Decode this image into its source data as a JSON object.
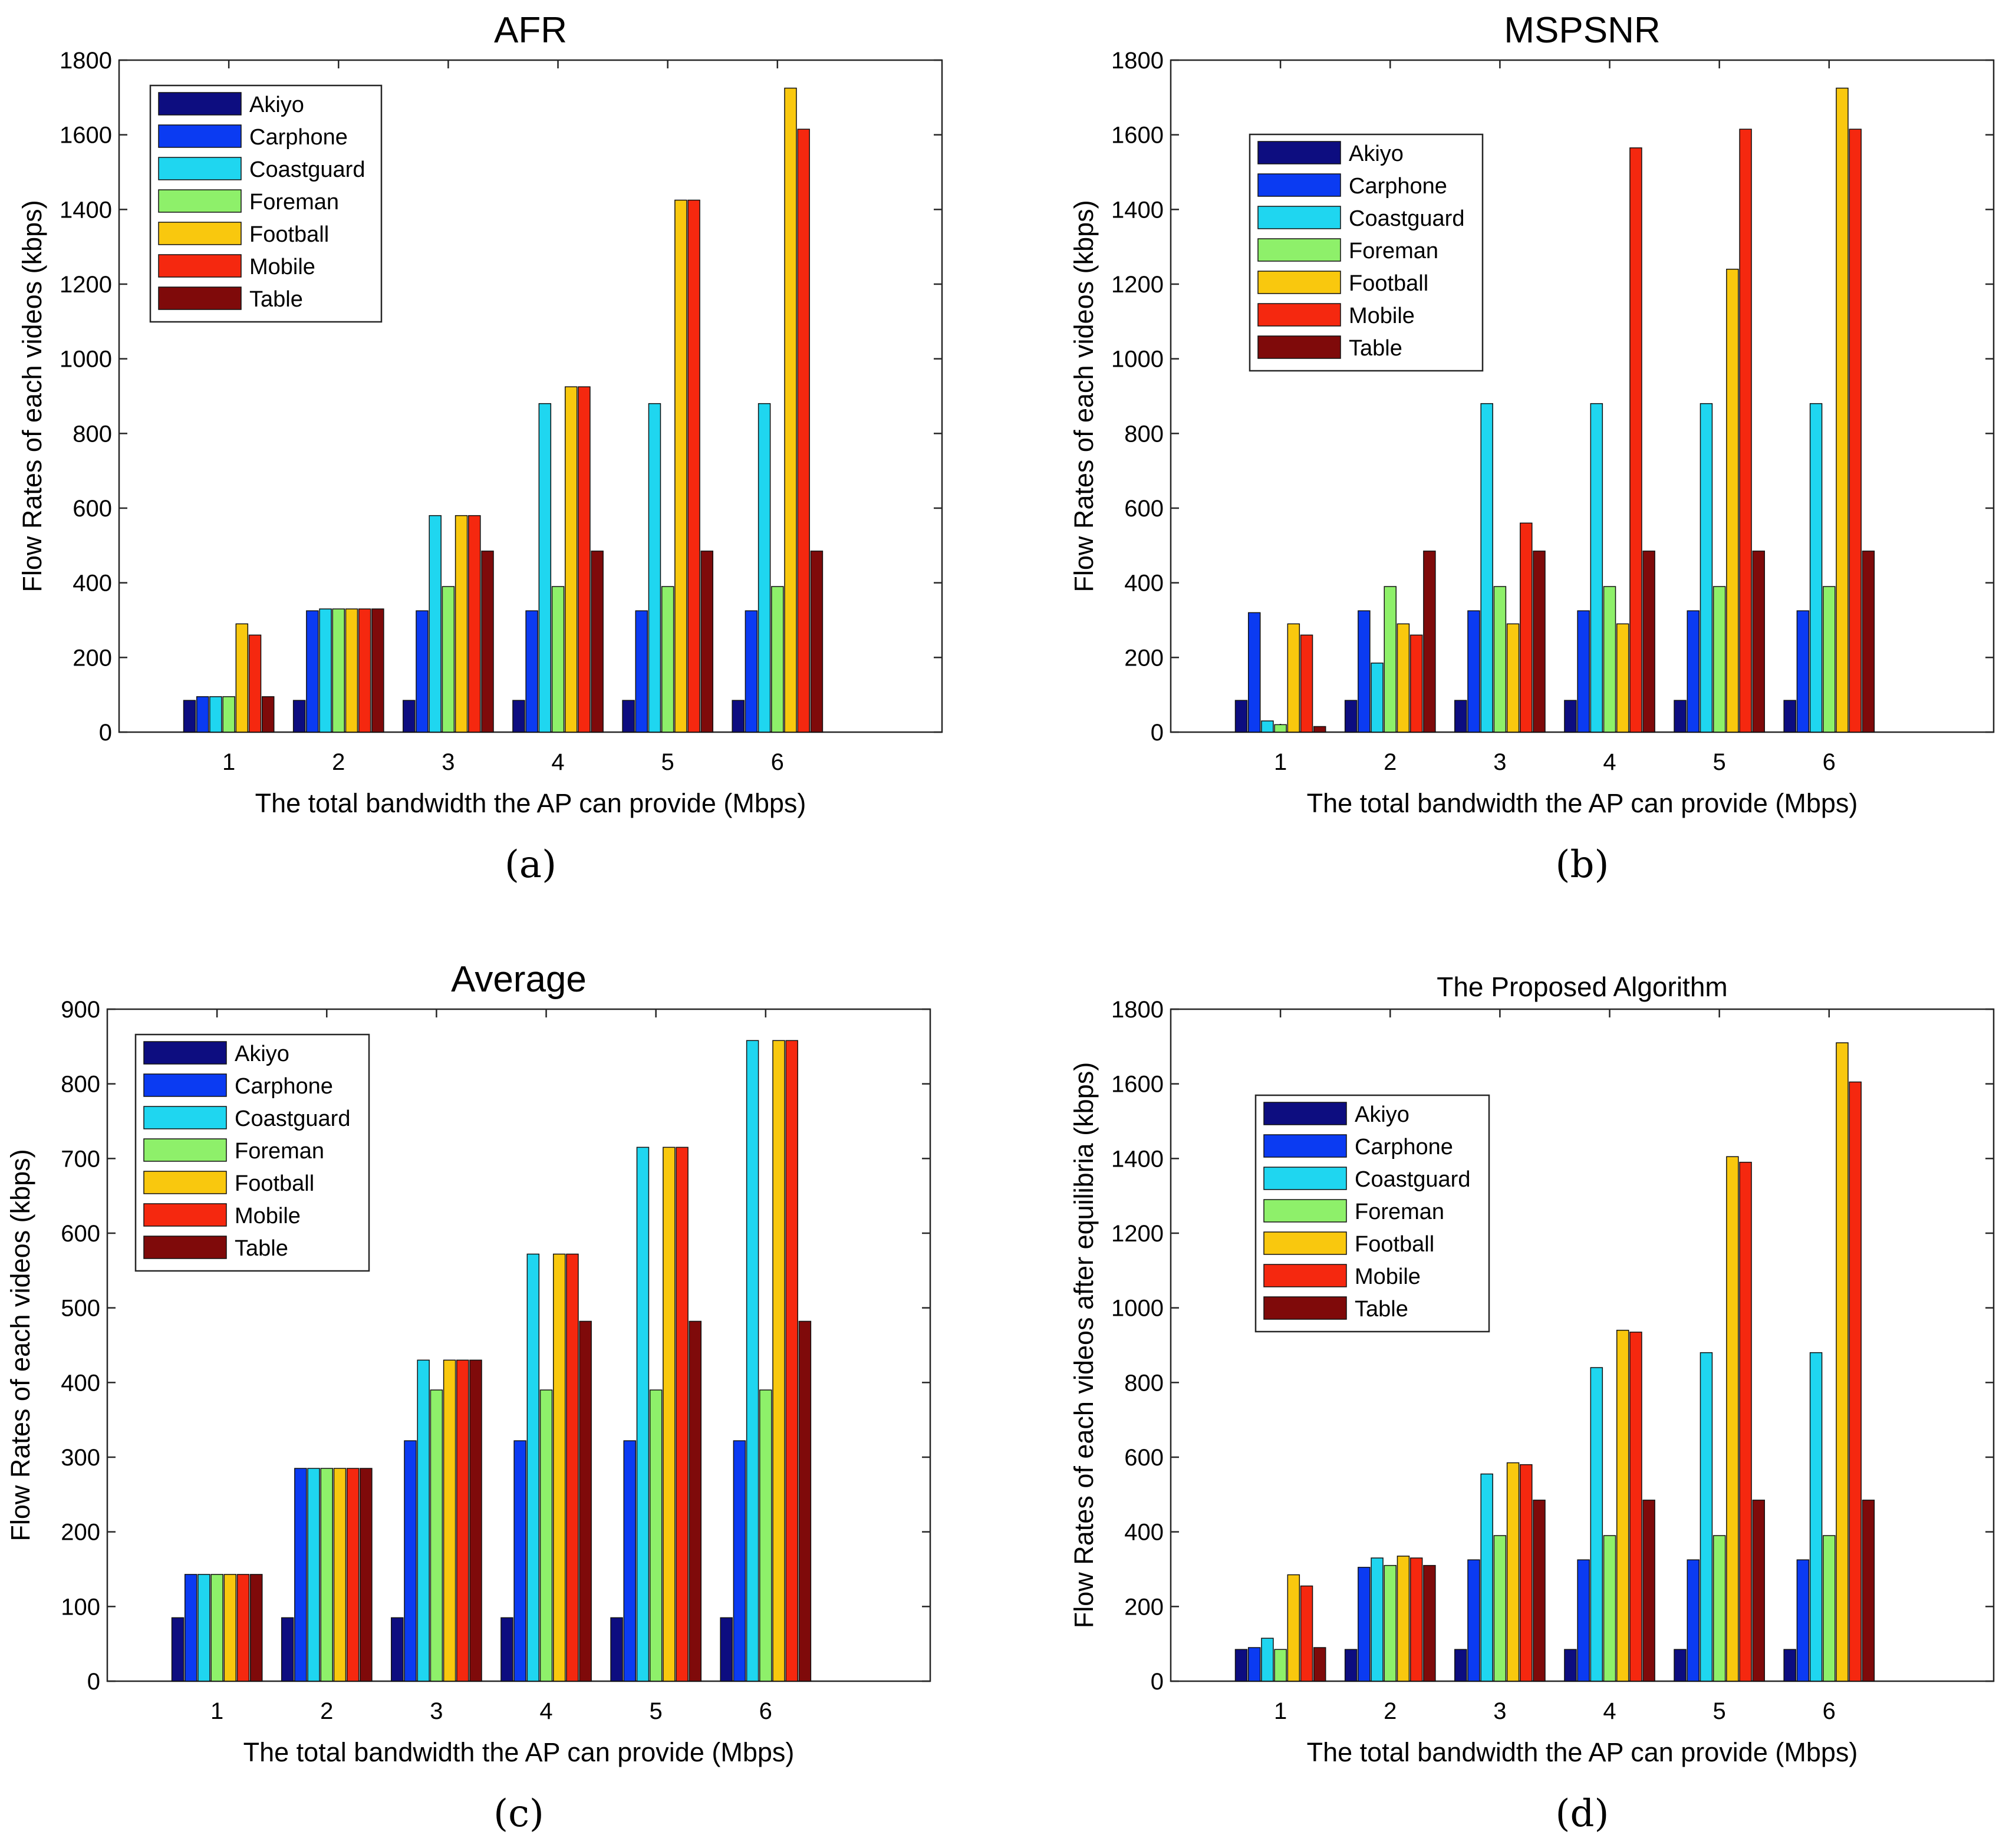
{
  "series_names": [
    "Akiyo",
    "Carphone",
    "Coastguard",
    "Foreman",
    "Football",
    "Mobile",
    "Table"
  ],
  "series_colors": [
    "#0d0d80",
    "#0b3bf2",
    "#1fd6f0",
    "#8ef06a",
    "#f9c80e",
    "#f5280f",
    "#7f0a0a"
  ],
  "chart_data": [
    {
      "type": "bar",
      "title": "AFR",
      "caption": "(a)",
      "xlabel": "The total bandwidth the AP can provide (Mbps)",
      "ylabel": "Flow Rates of each videos (kbps)",
      "categories": [
        "1",
        "2",
        "3",
        "4",
        "5",
        "6"
      ],
      "ylim": [
        0,
        1800
      ],
      "yticks": [
        0,
        200,
        400,
        600,
        800,
        1000,
        1200,
        1400,
        1600,
        1800
      ],
      "legend_position": "top-left",
      "series": [
        {
          "name": "Akiyo",
          "values": [
            85,
            85,
            85,
            85,
            85,
            85
          ]
        },
        {
          "name": "Carphone",
          "values": [
            95,
            325,
            325,
            325,
            325,
            325
          ]
        },
        {
          "name": "Coastguard",
          "values": [
            95,
            330,
            580,
            880,
            880,
            880
          ]
        },
        {
          "name": "Foreman",
          "values": [
            95,
            330,
            390,
            390,
            390,
            390
          ]
        },
        {
          "name": "Football",
          "values": [
            290,
            330,
            580,
            925,
            1425,
            1725
          ]
        },
        {
          "name": "Mobile",
          "values": [
            260,
            330,
            580,
            925,
            1425,
            1615
          ]
        },
        {
          "name": "Table",
          "values": [
            95,
            330,
            485,
            485,
            485,
            485
          ]
        }
      ]
    },
    {
      "type": "bar",
      "title": "MSPSNR",
      "caption": "(b)",
      "xlabel": "The total bandwidth the AP can provide (Mbps)",
      "ylabel": "Flow Rates of each videos (kbps)",
      "categories": [
        "1",
        "2",
        "3",
        "4",
        "5",
        "6"
      ],
      "ylim": [
        0,
        1800
      ],
      "yticks": [
        0,
        200,
        400,
        600,
        800,
        1000,
        1200,
        1400,
        1600,
        1800
      ],
      "legend_position": "top-left",
      "series": [
        {
          "name": "Akiyo",
          "values": [
            85,
            85,
            85,
            85,
            85,
            85
          ]
        },
        {
          "name": "Carphone",
          "values": [
            320,
            325,
            325,
            325,
            325,
            325
          ]
        },
        {
          "name": "Coastguard",
          "values": [
            30,
            185,
            880,
            880,
            880,
            880
          ]
        },
        {
          "name": "Foreman",
          "values": [
            20,
            390,
            390,
            390,
            390,
            390
          ]
        },
        {
          "name": "Football",
          "values": [
            290,
            290,
            290,
            290,
            1240,
            1725
          ]
        },
        {
          "name": "Mobile",
          "values": [
            260,
            260,
            560,
            1565,
            1615,
            1615
          ]
        },
        {
          "name": "Table",
          "values": [
            15,
            485,
            485,
            485,
            485,
            485
          ]
        }
      ]
    },
    {
      "type": "bar",
      "title": "Average",
      "caption": "(c)",
      "xlabel": "The total bandwidth the AP can provide (Mbps)",
      "ylabel": "Flow Rates of each videos (kbps)",
      "categories": [
        "1",
        "2",
        "3",
        "4",
        "5",
        "6"
      ],
      "ylim": [
        0,
        900
      ],
      "yticks": [
        0,
        100,
        200,
        300,
        400,
        500,
        600,
        700,
        800,
        900
      ],
      "legend_position": "top-left",
      "series": [
        {
          "name": "Akiyo",
          "values": [
            85,
            85,
            85,
            85,
            85,
            85
          ]
        },
        {
          "name": "Carphone",
          "values": [
            143,
            285,
            322,
            322,
            322,
            322
          ]
        },
        {
          "name": "Coastguard",
          "values": [
            143,
            285,
            430,
            572,
            715,
            858
          ]
        },
        {
          "name": "Foreman",
          "values": [
            143,
            285,
            390,
            390,
            390,
            390
          ]
        },
        {
          "name": "Football",
          "values": [
            143,
            285,
            430,
            572,
            715,
            858
          ]
        },
        {
          "name": "Mobile",
          "values": [
            143,
            285,
            430,
            572,
            715,
            858
          ]
        },
        {
          "name": "Table",
          "values": [
            143,
            285,
            430,
            482,
            482,
            482
          ]
        }
      ]
    },
    {
      "type": "bar",
      "title": "The Proposed Algorithm",
      "caption": "(d)",
      "xlabel": "The total bandwidth the AP can provide (Mbps)",
      "ylabel": "Flow Rates of each videos after equilibria (kbps)",
      "categories": [
        "1",
        "2",
        "3",
        "4",
        "5",
        "6"
      ],
      "ylim": [
        0,
        1800
      ],
      "yticks": [
        0,
        200,
        400,
        600,
        800,
        1000,
        1200,
        1400,
        1600,
        1800
      ],
      "legend_position": "top-left",
      "series": [
        {
          "name": "Akiyo",
          "values": [
            85,
            85,
            85,
            85,
            85,
            85
          ]
        },
        {
          "name": "Carphone",
          "values": [
            90,
            305,
            325,
            325,
            325,
            325
          ]
        },
        {
          "name": "Coastguard",
          "values": [
            115,
            330,
            555,
            840,
            880,
            880
          ]
        },
        {
          "name": "Foreman",
          "values": [
            85,
            310,
            390,
            390,
            390,
            390
          ]
        },
        {
          "name": "Football",
          "values": [
            285,
            335,
            585,
            940,
            1405,
            1710
          ]
        },
        {
          "name": "Mobile",
          "values": [
            255,
            330,
            580,
            935,
            1390,
            1605
          ]
        },
        {
          "name": "Table",
          "values": [
            90,
            310,
            485,
            485,
            485,
            485
          ]
        }
      ]
    }
  ]
}
